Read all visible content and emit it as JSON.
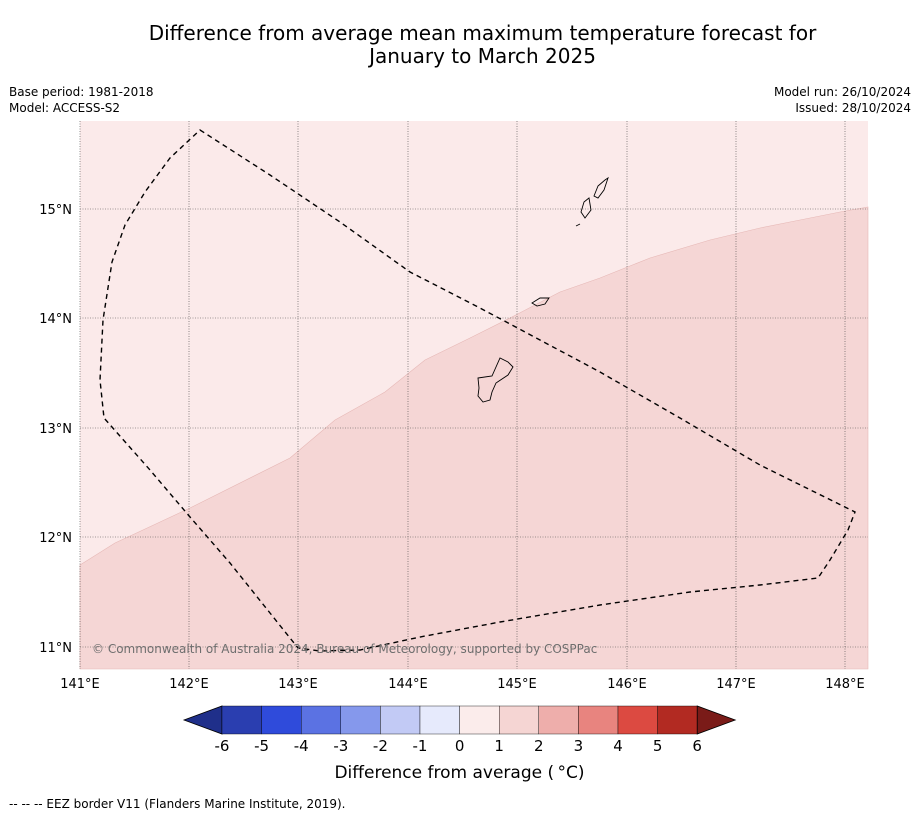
{
  "title_line1": "Difference from average mean maximum temperature forecast for",
  "title_line2": "January to March 2025",
  "base_period": "Base period: 1981-2018",
  "model": "Model: ACCESS-S2",
  "model_run": "Model run: 26/10/2024",
  "issued": "Issued: 28/10/2024",
  "copyright": "© Commonwealth of Australia 2024, Bureau of Meteorology, supported by COSPPac",
  "lon_ticks": [
    "141°E",
    "142°E",
    "143°E",
    "144°E",
    "145°E",
    "146°E",
    "147°E",
    "148°E"
  ],
  "lat_ticks": [
    "15°N",
    "14°N",
    "13°N",
    "12°N",
    "11°N"
  ],
  "colorbar": {
    "ticks": [
      "-6",
      "-5",
      "-4",
      "-3",
      "-2",
      "-1",
      "0",
      "1",
      "2",
      "3",
      "4",
      "5",
      "6"
    ],
    "colors": [
      "#1f2f8a",
      "#2a3eb0",
      "#2f4bdb",
      "#5b72e3",
      "#8598ec",
      "#c2caf5",
      "#e6eafc",
      "#fbeceb",
      "#f5d5d3",
      "#eeaeab",
      "#e8847f",
      "#dc4a41",
      "#b22a22",
      "#7a1b18"
    ],
    "label": "Difference from average ( °C)"
  },
  "regions": [
    {
      "name": "0 to 1",
      "color": "#fbeaea"
    },
    {
      "name": "1 to 2",
      "color": "#f5d6d5"
    }
  ],
  "footnote": "-- -- -- EEZ border V11 (Flanders Marine Institute, 2019)."
}
